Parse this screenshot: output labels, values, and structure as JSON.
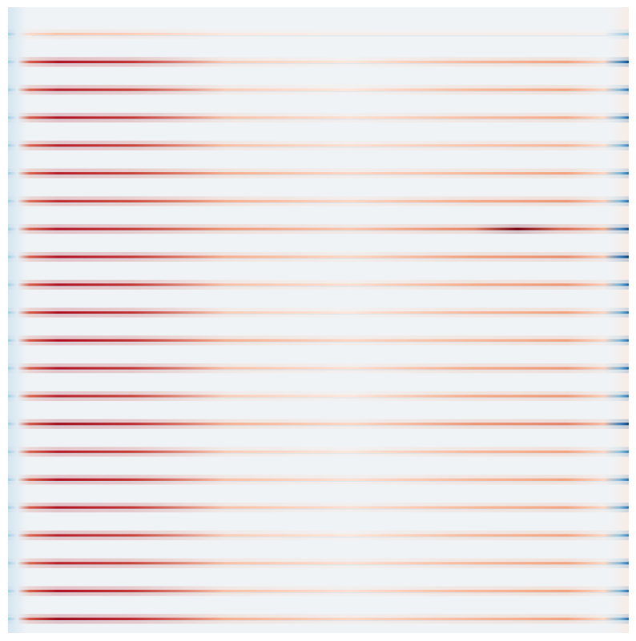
{
  "chart_data": {
    "type": "heatmap",
    "colormap": "RdBu_r",
    "background_color": "#eff3f6",
    "colors": {
      "strong_red": "#b2182b",
      "light_red": "#fbd3c0",
      "strong_blue": "#2166ac",
      "light_blue": "#c9dcec"
    },
    "bands": [
      {
        "row": 1,
        "left": 0.2,
        "mid": 0.05,
        "right": 0.06,
        "edge": -0.3,
        "hotspot": null
      },
      {
        "row": 2,
        "left": 0.85,
        "mid": 0.1,
        "right": 0.3,
        "edge": -0.75,
        "hotspot": null
      },
      {
        "row": 3,
        "left": 0.8,
        "mid": 0.1,
        "right": 0.3,
        "edge": -0.55,
        "hotspot": null
      },
      {
        "row": 4,
        "left": 0.85,
        "mid": 0.12,
        "right": 0.28,
        "edge": -0.6,
        "hotspot": null
      },
      {
        "row": 5,
        "left": 0.8,
        "mid": 0.12,
        "right": 0.25,
        "edge": -0.5,
        "hotspot": null
      },
      {
        "row": 6,
        "left": 0.8,
        "mid": 0.15,
        "right": 0.3,
        "edge": -0.55,
        "hotspot": null
      },
      {
        "row": 7,
        "left": 0.75,
        "mid": 0.15,
        "right": 0.35,
        "edge": -0.55,
        "hotspot": null
      },
      {
        "row": 8,
        "left": 0.85,
        "mid": 0.2,
        "right": 0.55,
        "edge": -0.8,
        "hotspot": {
          "center": 0.82,
          "value": 1.0
        }
      },
      {
        "row": 9,
        "left": 0.85,
        "mid": 0.15,
        "right": 0.4,
        "edge": -0.85,
        "hotspot": null
      },
      {
        "row": 10,
        "left": 0.85,
        "mid": 0.12,
        "right": 0.35,
        "edge": -0.6,
        "hotspot": null
      },
      {
        "row": 11,
        "left": 0.85,
        "mid": 0.1,
        "right": 0.3,
        "edge": -0.55,
        "hotspot": null
      },
      {
        "row": 12,
        "left": 0.85,
        "mid": 0.15,
        "right": 0.3,
        "edge": -0.55,
        "hotspot": null
      },
      {
        "row": 13,
        "left": 0.85,
        "mid": 0.12,
        "right": 0.35,
        "edge": -0.6,
        "hotspot": null
      },
      {
        "row": 14,
        "left": 0.8,
        "mid": 0.1,
        "right": 0.35,
        "edge": -0.55,
        "hotspot": null
      },
      {
        "row": 15,
        "left": 0.9,
        "mid": 0.15,
        "right": 0.45,
        "edge": -0.85,
        "hotspot": null
      },
      {
        "row": 16,
        "left": 0.8,
        "mid": 0.1,
        "right": 0.3,
        "edge": -0.5,
        "hotspot": null
      },
      {
        "row": 17,
        "left": 0.85,
        "mid": 0.12,
        "right": 0.3,
        "edge": -0.55,
        "hotspot": null
      },
      {
        "row": 18,
        "left": 0.85,
        "mid": 0.12,
        "right": 0.3,
        "edge": -0.55,
        "hotspot": null
      },
      {
        "row": 19,
        "left": 0.8,
        "mid": 0.1,
        "right": 0.3,
        "edge": -0.5,
        "hotspot": null
      },
      {
        "row": 20,
        "left": 0.8,
        "mid": 0.12,
        "right": 0.3,
        "edge": -0.55,
        "hotspot": null
      },
      {
        "row": 21,
        "left": 0.85,
        "mid": 0.12,
        "right": 0.3,
        "edge": -0.55,
        "hotspot": null
      },
      {
        "row": 22,
        "left": 0.9,
        "mid": 0.15,
        "right": 0.3,
        "edge": -0.55,
        "hotspot": null
      },
      {
        "row": 23,
        "left": 0.9,
        "mid": 0.3,
        "right": 0.35,
        "edge": -0.7,
        "hotspot": null
      }
    ]
  }
}
